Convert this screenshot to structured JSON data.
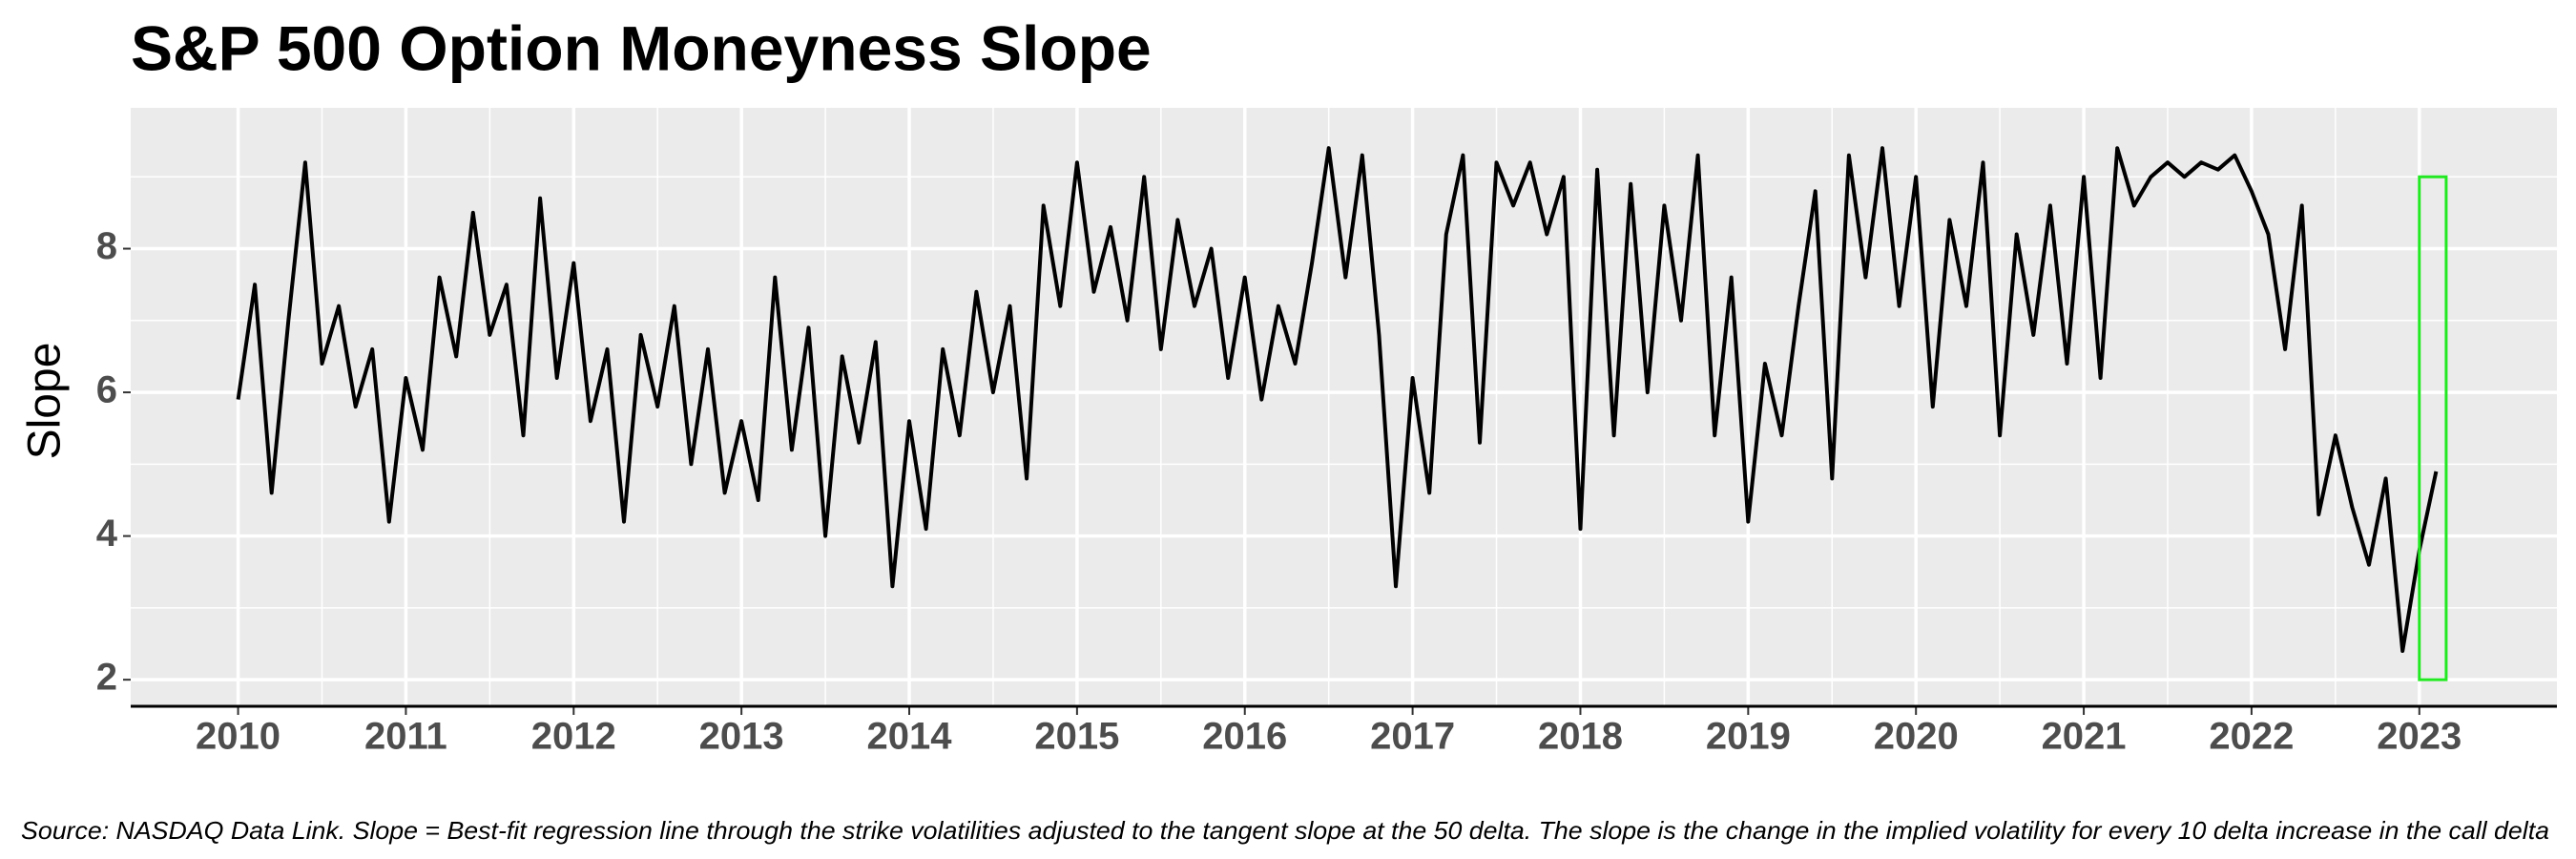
{
  "chart_data": {
    "type": "line",
    "title": "S&P 500 Option Moneyness Slope",
    "y_label": "Slope",
    "caption": "Source: NASDAQ Data Link. Slope = Best-fit regression line through the strike volatilities adjusted to the tangent slope at the 50 delta. The slope is the change in the implied volatility for every 10 delta increase in the call delta",
    "color": "#000000",
    "grid": true,
    "x": [
      2010,
      2010.1,
      2010.2,
      2010.3,
      2010.4,
      2010.5,
      2010.6,
      2010.7,
      2010.8,
      2010.9,
      2011,
      2011.1,
      2011.2,
      2011.3,
      2011.4,
      2011.5,
      2011.6,
      2011.7,
      2011.8,
      2011.9,
      2012,
      2012.1,
      2012.2,
      2012.3,
      2012.4,
      2012.5,
      2012.6,
      2012.7,
      2012.8,
      2012.9,
      2013,
      2013.1,
      2013.2,
      2013.3,
      2013.4,
      2013.5,
      2013.6,
      2013.7,
      2013.8,
      2013.9,
      2014,
      2014.1,
      2014.2,
      2014.3,
      2014.4,
      2014.5,
      2014.6,
      2014.7,
      2014.8,
      2014.9,
      2015,
      2015.1,
      2015.2,
      2015.3,
      2015.4,
      2015.5,
      2015.6,
      2015.7,
      2015.8,
      2015.9,
      2016,
      2016.1,
      2016.2,
      2016.3,
      2016.4,
      2016.5,
      2016.6,
      2016.7,
      2016.8,
      2016.9,
      2017,
      2017.1,
      2017.2,
      2017.3,
      2017.4,
      2017.5,
      2017.6,
      2017.7,
      2017.8,
      2017.9,
      2018,
      2018.1,
      2018.2,
      2018.3,
      2018.4,
      2018.5,
      2018.6,
      2018.7,
      2018.8,
      2018.9,
      2019,
      2019.1,
      2019.2,
      2019.3,
      2019.4,
      2019.5,
      2019.6,
      2019.7,
      2019.8,
      2019.9,
      2020,
      2020.1,
      2020.2,
      2020.3,
      2020.4,
      2020.5,
      2020.6,
      2020.7,
      2020.8,
      2020.9,
      2021,
      2021.1,
      2021.2,
      2021.3,
      2021.4,
      2021.5,
      2021.6,
      2021.7,
      2021.8,
      2021.9,
      2022,
      2022.1,
      2022.2,
      2022.3,
      2022.4,
      2022.5,
      2022.6,
      2022.7,
      2022.8,
      2022.9,
      2023,
      2023.1
    ],
    "values": [
      5.9,
      7.5,
      4.6,
      7.0,
      9.2,
      6.4,
      7.2,
      5.8,
      6.6,
      4.2,
      6.2,
      5.2,
      7.6,
      6.5,
      8.5,
      6.8,
      7.5,
      5.4,
      8.7,
      6.2,
      7.8,
      5.6,
      6.6,
      4.2,
      6.8,
      5.8,
      7.2,
      5.0,
      6.6,
      4.6,
      5.6,
      4.5,
      7.6,
      5.2,
      6.9,
      4.0,
      6.5,
      5.3,
      6.7,
      3.3,
      5.6,
      4.1,
      6.6,
      5.4,
      7.4,
      6.0,
      7.2,
      4.8,
      8.6,
      7.2,
      9.2,
      7.4,
      8.3,
      7.0,
      9.0,
      6.6,
      8.4,
      7.2,
      8.0,
      6.2,
      7.6,
      5.9,
      7.2,
      6.4,
      7.8,
      9.4,
      7.6,
      9.3,
      6.8,
      3.3,
      6.2,
      4.6,
      8.2,
      9.3,
      5.3,
      9.2,
      8.6,
      9.2,
      8.2,
      9.0,
      4.1,
      9.1,
      5.4,
      8.9,
      6.0,
      8.6,
      7.0,
      9.3,
      5.4,
      7.6,
      4.2,
      6.4,
      5.4,
      7.2,
      8.8,
      4.8,
      9.3,
      7.6,
      9.4,
      7.2,
      9.0,
      5.8,
      8.4,
      7.2,
      9.2,
      5.4,
      8.2,
      6.8,
      8.6,
      6.4,
      9.0,
      6.2,
      9.4,
      8.6,
      9.0,
      9.2,
      9.0,
      9.2,
      9.1,
      9.3,
      8.8,
      8.2,
      6.6,
      8.6,
      4.3,
      5.4,
      4.4,
      3.6,
      4.8,
      2.4,
      3.8,
      4.9
    ],
    "xlim": [
      2009.36,
      2023.82
    ],
    "ylim": [
      1.63,
      9.96
    ],
    "xticks": [
      2010,
      2011,
      2012,
      2013,
      2014,
      2015,
      2016,
      2017,
      2018,
      2019,
      2020,
      2021,
      2022,
      2023
    ],
    "yticks": [
      2,
      4,
      6,
      8
    ],
    "highlight": {
      "x": [
        2023,
        2023.16
      ],
      "y": [
        2,
        9
      ],
      "color": "#22e822"
    }
  }
}
